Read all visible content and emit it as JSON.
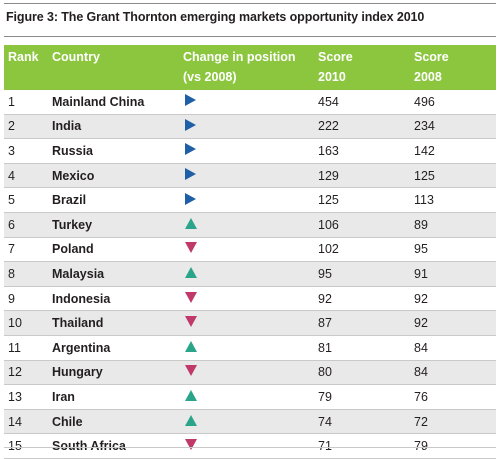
{
  "figure_title": "Figure 3: The Grant Thornton emerging markets opportunity index 2010",
  "header": {
    "rank": "Rank",
    "country": "Country",
    "change_line1": "Change in position",
    "change_line2": "(vs 2008)",
    "score2010_line1": "Score",
    "score2010_line2": "2010",
    "score2008_line1": "Score",
    "score2008_line2": "2008"
  },
  "colors": {
    "header_bg": "#8cc63f",
    "no_change": "#1f5fa7",
    "up": "#2aa58a",
    "down": "#c0396b"
  },
  "rows": [
    {
      "rank": "1",
      "country": "Mainland China",
      "change": "same",
      "score2010": "454",
      "score2008": "496"
    },
    {
      "rank": "2",
      "country": "India",
      "change": "same",
      "score2010": "222",
      "score2008": "234"
    },
    {
      "rank": "3",
      "country": "Russia",
      "change": "same",
      "score2010": "163",
      "score2008": "142"
    },
    {
      "rank": "4",
      "country": "Mexico",
      "change": "same",
      "score2010": "129",
      "score2008": "125"
    },
    {
      "rank": "5",
      "country": "Brazil",
      "change": "same",
      "score2010": "125",
      "score2008": "113"
    },
    {
      "rank": "6",
      "country": "Turkey",
      "change": "up",
      "score2010": "106",
      "score2008": "89"
    },
    {
      "rank": "7",
      "country": "Poland",
      "change": "down",
      "score2010": "102",
      "score2008": "95"
    },
    {
      "rank": "8",
      "country": "Malaysia",
      "change": "up",
      "score2010": "95",
      "score2008": "91"
    },
    {
      "rank": "9",
      "country": "Indonesia",
      "change": "down",
      "score2010": "92",
      "score2008": "92"
    },
    {
      "rank": "10",
      "country": "Thailand",
      "change": "down",
      "score2010": "87",
      "score2008": "92"
    },
    {
      "rank": "11",
      "country": "Argentina",
      "change": "up",
      "score2010": "81",
      "score2008": "84"
    },
    {
      "rank": "12",
      "country": "Hungary",
      "change": "down",
      "score2010": "80",
      "score2008": "84"
    },
    {
      "rank": "13",
      "country": "Iran",
      "change": "up",
      "score2010": "79",
      "score2008": "76"
    },
    {
      "rank": "14",
      "country": "Chile",
      "change": "up",
      "score2010": "74",
      "score2008": "72"
    },
    {
      "rank": "15",
      "country": "South Africa",
      "change": "down",
      "score2010": "71",
      "score2008": "79"
    }
  ]
}
